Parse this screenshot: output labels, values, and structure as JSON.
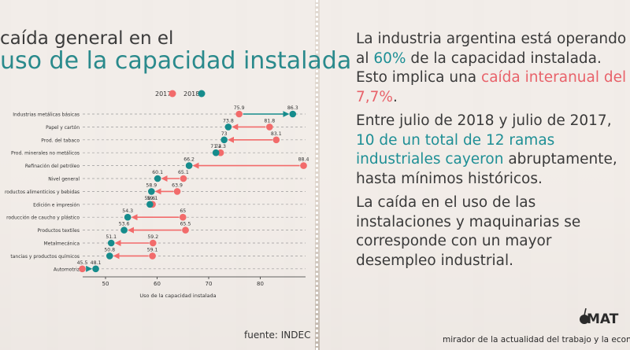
{
  "title": {
    "line1": "caída general en el",
    "line2": "uso de la capacidad instalada"
  },
  "source": "fuente: INDEC",
  "colors": {
    "y2017": "#f26b6b",
    "y2018": "#168c8c",
    "teal_text": "#1e8f95",
    "red_text": "#e8626a"
  },
  "chart_data": {
    "type": "dot-arrow",
    "xlabel": "Uso de la capacidad instalada",
    "xticks": [
      50,
      60,
      70,
      80
    ],
    "xlim": [
      44.5,
      89
    ],
    "legend": [
      {
        "name": "2017",
        "color": "#f26b6b"
      },
      {
        "name": "2018",
        "color": "#168c8c"
      }
    ],
    "categories": [
      "Industrias metálicas básicas",
      "Papel y cartón",
      "Prod. del tabaco",
      "Prod. minerales no metálicos",
      "Refinación del petróleo",
      "Nivel general",
      "roductos alimenticios y bebidas",
      "Edición e impresión",
      "roducción de caucho y plástico",
      "Productos textiles",
      "Metalmecánica",
      "tancias y productos químicos",
      "Automotriz"
    ],
    "series": [
      {
        "name": "2017",
        "values": [
          75.9,
          81.8,
          83.1,
          72.3,
          88.4,
          65.1,
          63.9,
          59.1,
          65,
          65.5,
          59.2,
          59.1,
          45.5
        ]
      },
      {
        "name": "2018",
        "values": [
          86.3,
          73.8,
          73,
          71.4,
          66.2,
          60.1,
          58.9,
          58.6,
          54.3,
          53.6,
          51.1,
          50.8,
          48.1
        ]
      }
    ]
  },
  "text": {
    "p1_a": "La industria argentina está operando al ",
    "p1_b": "60%",
    "p1_c": " de la capacidad instalada. Esto implica una ",
    "p1_d": "caída interanual del 7,7%",
    "p1_e": ".",
    "p2_a": "Entre julio de 2018 y julio de 2017, ",
    "p2_b": "10 de un total de 12 ramas industriales cayeron",
    "p2_c": " abruptamente, hasta mínimos históricos.",
    "p3": "La caída en el uso de las instalaciones y maquinarias se corresponde con un mayor desempleo industrial."
  },
  "logo": {
    "name": "MAT",
    "icon": "mate-gourd-icon",
    "tagline": "mirador de la actualidad del trabajo y la econo"
  }
}
